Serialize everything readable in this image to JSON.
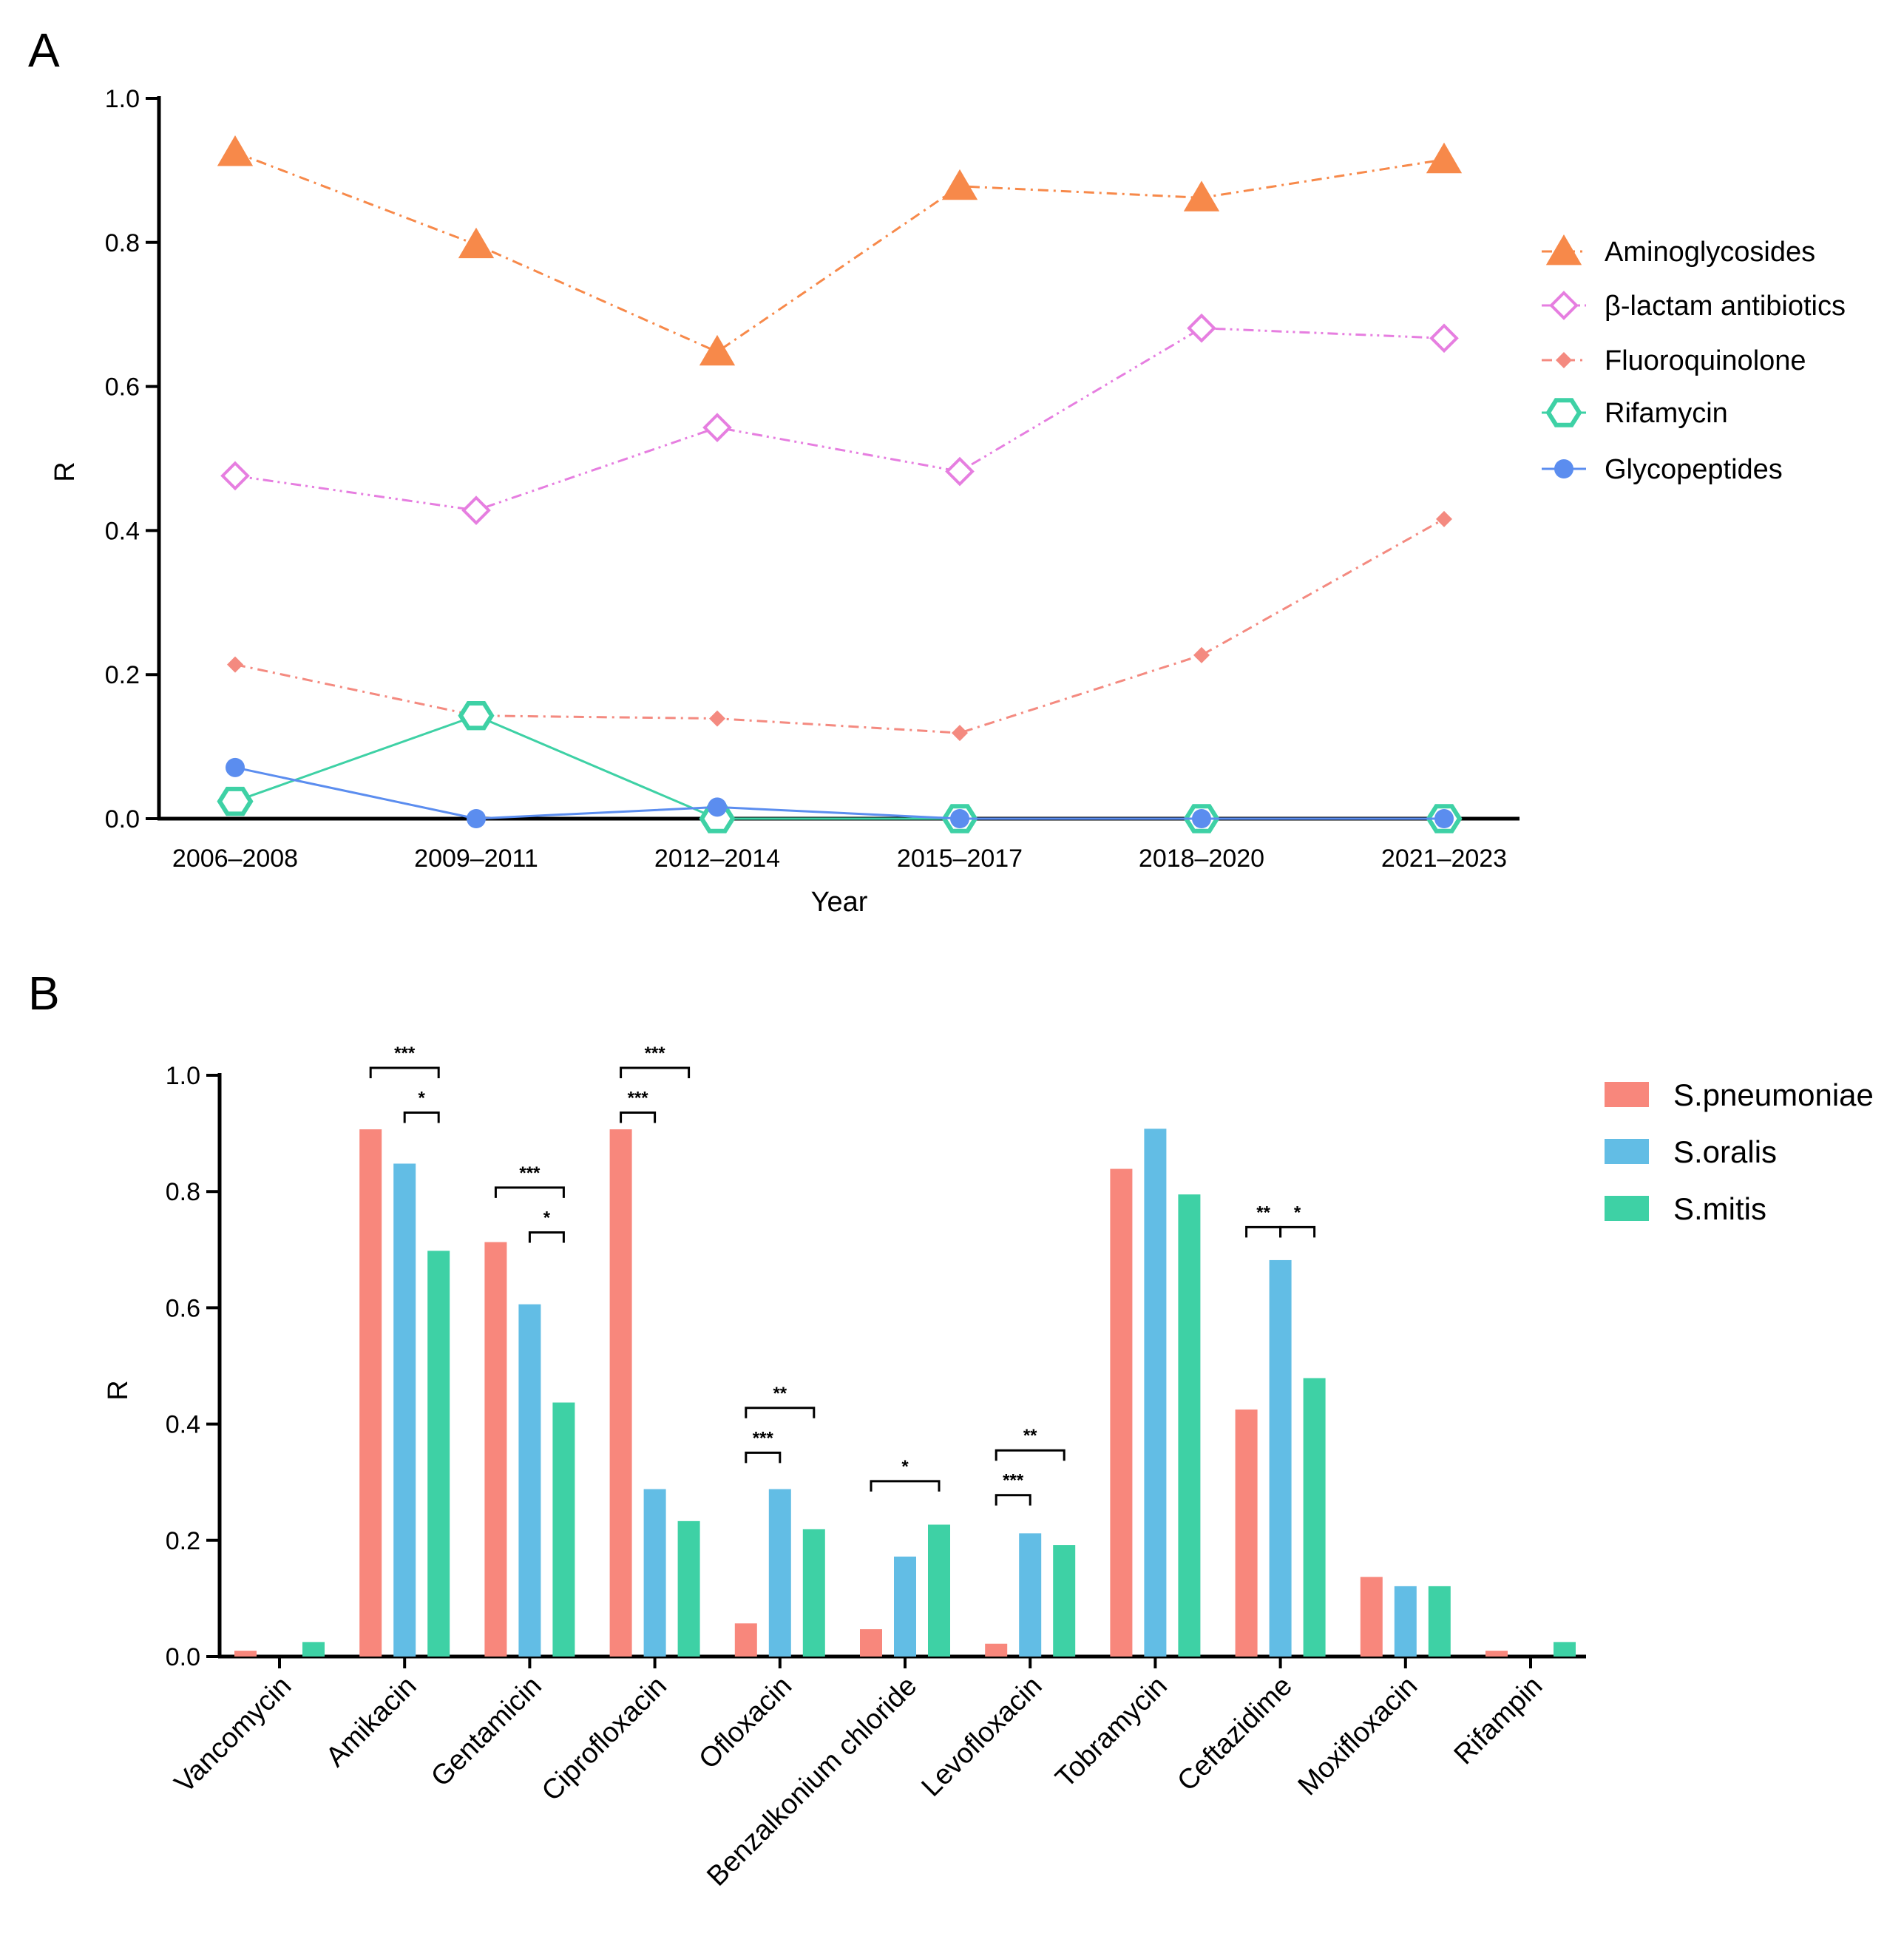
{
  "chart_data": [
    {
      "panel": "A",
      "type": "line",
      "title": "",
      "xlabel": "Year",
      "ylabel": "R",
      "ylim": [
        0,
        1.0
      ],
      "yticks": [
        "0.0",
        "0.2",
        "0.4",
        "0.6",
        "0.8",
        "1.0"
      ],
      "categories": [
        "2006–2008",
        "2009–2011",
        "2012–2014",
        "2015–2017",
        "2018–2020",
        "2021–2023"
      ],
      "legend_position": "right",
      "series": [
        {
          "name": "Aminoglycosides",
          "color": "#f7894a",
          "marker": "triangle",
          "line": "dash-dot",
          "values": [
            0.925,
            0.797,
            0.648,
            0.878,
            0.862,
            0.915
          ]
        },
        {
          "name": "β-lactam antibiotics",
          "color": "#e67ee0",
          "marker": "diamond-open",
          "line": "dash-dot-dot",
          "values": [
            0.476,
            0.428,
            0.543,
            0.482,
            0.681,
            0.667
          ]
        },
        {
          "name": "Fluoroquinolone",
          "color": "#f48a80",
          "marker": "diamond",
          "line": "dash-dot",
          "values": [
            0.214,
            0.143,
            0.139,
            0.119,
            0.227,
            0.416
          ]
        },
        {
          "name": "Rifamycin",
          "color": "#3ed1a5",
          "marker": "hexagon-open",
          "line": "solid",
          "values": [
            0.024,
            0.143,
            0.0,
            0.0,
            0.0,
            0.0
          ]
        },
        {
          "name": "Glycopeptides",
          "color": "#5b8def",
          "marker": "circle",
          "line": "solid",
          "values": [
            0.071,
            0.0,
            0.016,
            0.0,
            0.0,
            0.0
          ]
        }
      ]
    },
    {
      "panel": "B",
      "type": "bar",
      "title": "",
      "xlabel": "",
      "ylabel": "R",
      "ylim": [
        0,
        1.0
      ],
      "yticks": [
        "0.0",
        "0.2",
        "0.4",
        "0.6",
        "0.8",
        "1.0"
      ],
      "categories": [
        "Vancomycin",
        "Amikacin",
        "Gentamicin",
        "Ciprofloxacin",
        "Ofloxacin",
        "Benzalkonium chloride",
        "Levofloxacin",
        "Tobramycin",
        "Ceftazidime",
        "Moxifloxacin",
        "Rifampin"
      ],
      "legend_position": "top-right",
      "series": [
        {
          "name": "S.pneumoniae",
          "color": "#f8877c",
          "values": [
            0.01,
            0.907,
            0.713,
            0.907,
            0.057,
            0.047,
            0.022,
            0.839,
            0.425,
            0.137,
            0.01
          ]
        },
        {
          "name": "S.oralis",
          "color": "#62bde5",
          "values": [
            0.0,
            0.848,
            0.606,
            0.288,
            0.288,
            0.172,
            0.212,
            0.908,
            0.682,
            0.121,
            0.0
          ]
        },
        {
          "name": "S.mitis",
          "color": "#3ed1a5",
          "values": [
            0.025,
            0.698,
            0.437,
            0.233,
            0.219,
            0.227,
            0.192,
            0.795,
            0.479,
            0.121,
            0.025
          ]
        }
      ],
      "significance": [
        {
          "category": 1,
          "from": 0,
          "to": 2,
          "label": "***",
          "level": 1.0
        },
        {
          "category": 1,
          "from": 1,
          "to": 2,
          "label": "*",
          "level": 0.923
        },
        {
          "category": 2,
          "from": 0,
          "to": 2,
          "label": "***",
          "level": 0.794
        },
        {
          "category": 2,
          "from": 1,
          "to": 2,
          "label": "*",
          "level": 0.717
        },
        {
          "category": 3,
          "from": 0,
          "to": 2,
          "label": "***",
          "level": 1.0
        },
        {
          "category": 3,
          "from": 0,
          "to": 1,
          "label": "***",
          "level": 0.923
        },
        {
          "category": 4,
          "from": 0,
          "to": 2,
          "label": "**",
          "level": 0.415
        },
        {
          "category": 4,
          "from": 0,
          "to": 1,
          "label": "***",
          "level": 0.338
        },
        {
          "category": 5,
          "from": 0,
          "to": 2,
          "label": "*",
          "level": 0.289
        },
        {
          "category": 6,
          "from": 0,
          "to": 2,
          "label": "**",
          "level": 0.342
        },
        {
          "category": 6,
          "from": 0,
          "to": 1,
          "label": "***",
          "level": 0.265
        },
        {
          "category": 8,
          "from": 0,
          "to": 1,
          "label": "**",
          "level": 0.726
        },
        {
          "category": 8,
          "from": 1,
          "to": 2,
          "label": "*",
          "level": 0.726
        }
      ]
    }
  ],
  "panels": {
    "a_label": "A",
    "b_label": "B"
  }
}
